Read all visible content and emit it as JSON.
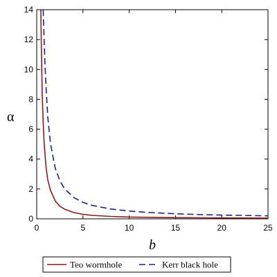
{
  "chart_data": {
    "type": "line",
    "xlabel": "b",
    "ylabel": "α",
    "xlim": [
      0,
      25
    ],
    "ylim": [
      0,
      14
    ],
    "x_ticks": [
      0,
      5,
      10,
      15,
      20,
      25
    ],
    "y_ticks": [
      0,
      2,
      4,
      6,
      8,
      10,
      12,
      14
    ],
    "grid": false,
    "legend_position": "bottom",
    "series": [
      {
        "name": "Teo wormhole",
        "color": "#8b1a1a",
        "style": "solid",
        "x": [
          0.45,
          0.5,
          0.6,
          0.7,
          0.8,
          1.0,
          1.2,
          1.5,
          2.0,
          2.5,
          3.0,
          4.0,
          5.0,
          6.0,
          8.0,
          10.0,
          12.0,
          15.0,
          18.0,
          20.0,
          22.0,
          25.0
        ],
        "y": [
          14.0,
          11.5,
          8.3,
          6.4,
          5.1,
          3.5,
          2.6,
          1.9,
          1.2,
          0.85,
          0.65,
          0.42,
          0.3,
          0.23,
          0.16,
          0.12,
          0.1,
          0.08,
          0.07,
          0.06,
          0.055,
          0.05
        ]
      },
      {
        "name": "Kerr black hole",
        "color": "#1a237e",
        "style": "dashed",
        "x": [
          0.7,
          0.8,
          0.9,
          1.0,
          1.2,
          1.5,
          2.0,
          2.5,
          3.0,
          4.0,
          5.0,
          6.0,
          8.0,
          10.0,
          12.0,
          15.0,
          18.0,
          20.0,
          22.0,
          25.0
        ],
        "y": [
          14.0,
          12.0,
          10.3,
          8.9,
          6.8,
          5.0,
          3.4,
          2.55,
          2.02,
          1.43,
          1.1,
          0.9,
          0.66,
          0.52,
          0.43,
          0.34,
          0.28,
          0.25,
          0.23,
          0.2
        ]
      }
    ]
  }
}
